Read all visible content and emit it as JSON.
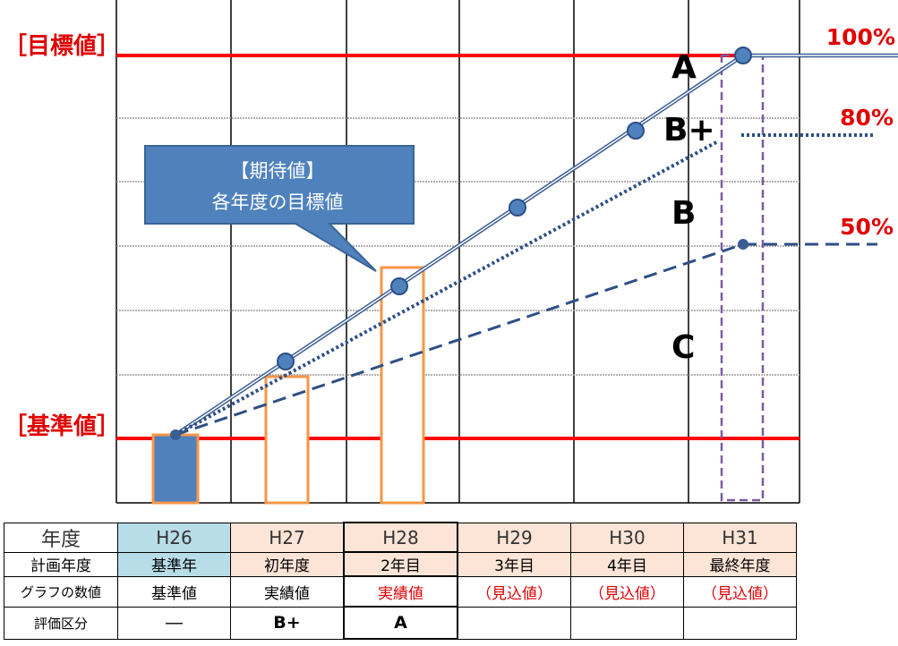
{
  "labels": {
    "target": "［目標値］",
    "baseline": "［基準値］",
    "pct100": "100%",
    "pct80": "80%",
    "pct50": "50%"
  },
  "grades": {
    "a": "A",
    "bplus": "B+",
    "b": "B",
    "c": "C"
  },
  "callout": {
    "line1": "【期待値】",
    "line2": "各年度の目標値"
  },
  "chart_data": {
    "type": "line",
    "x": [
      "H26",
      "H27",
      "H28",
      "H29",
      "H30",
      "H31"
    ],
    "ylim": [
      0,
      100
    ],
    "series": [
      {
        "values": [
          0,
          20,
          40,
          60,
          80,
          100
        ]
      },
      {
        "values": [
          0,
          null,
          null,
          null,
          null,
          80
        ]
      },
      {
        "values": [
          0,
          null,
          null,
          null,
          null,
          50
        ]
      }
    ],
    "bars": [
      {
        "x": "H26",
        "value": 0
      },
      {
        "x": "H27",
        "value": 15
      },
      {
        "x": "H28",
        "value": 37
      },
      {
        "x": "H31",
        "value": 100
      }
    ],
    "colors": {
      "red_line": "#ff0000",
      "series_line": "#3a5d94",
      "bar_fill": "#4f81bd",
      "bar_border": "#f79646",
      "dashed_box": "#7e5aa0"
    }
  },
  "table": {
    "rows": [
      {
        "header": "年度",
        "cells": [
          "H26",
          "H27",
          "H28",
          "H29",
          "H30",
          "H31"
        ]
      },
      {
        "header": "計画年度",
        "cells": [
          "基準年",
          "初年度",
          "2年目",
          "3年目",
          "4年目",
          "最終年度"
        ]
      },
      {
        "header": "グラフの数値",
        "cells": [
          "基準値",
          "実績値",
          "実績値",
          "（見込値）",
          "（見込値）",
          "（見込値）"
        ]
      },
      {
        "header": "評価区分",
        "cells": [
          "―",
          "B+",
          "A",
          "",
          "",
          ""
        ]
      }
    ]
  }
}
